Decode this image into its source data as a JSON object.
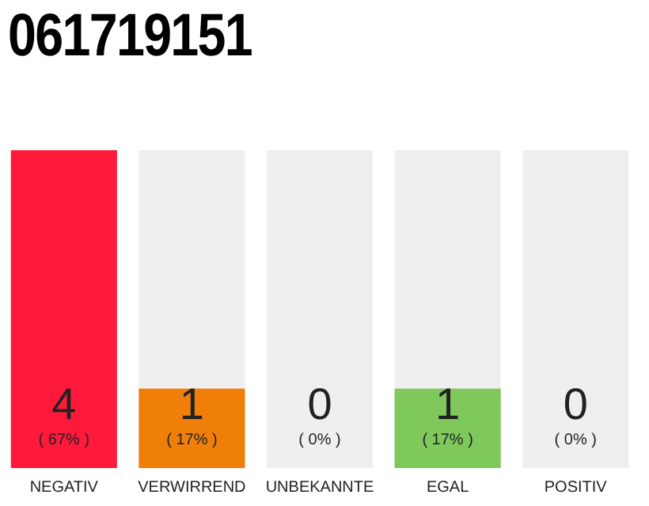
{
  "chart_data": {
    "type": "bar",
    "title": "061719151",
    "categories": [
      "NEGATIV",
      "VERWIRREND",
      "UNBEKANNTE",
      "EGAL",
      "POSITIV"
    ],
    "series": [
      {
        "color": "#efefef",
        "values": [
          null,
          4,
          4,
          4,
          4
        ]
      },
      {
        "colors": [
          "#ff1a3c",
          "#f07f0a",
          "#efefef",
          "#7ec85c",
          "#efefef"
        ],
        "values": [
          4,
          1,
          0,
          1,
          0
        ],
        "value_labels": [
          "4",
          "1",
          "0",
          "1",
          "0"
        ]
      }
    ],
    "annotations": [
      "( 67% )",
      "( 17% )",
      "( 0% )",
      "( 17% )",
      "( 0% )"
    ],
    "tick_labels": "x",
    "grid": false,
    "legend": false
  }
}
